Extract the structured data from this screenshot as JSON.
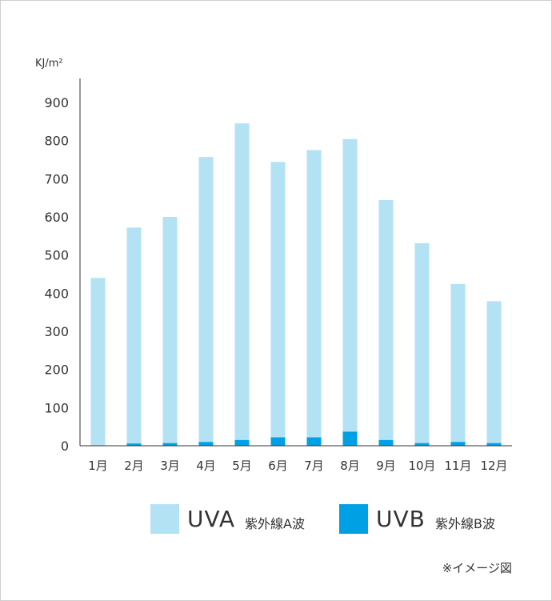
{
  "chart_data": {
    "type": "bar",
    "stacked": true,
    "y_unit": "KJ/m²",
    "ylim": [
      0,
      900
    ],
    "y_ticks": [
      0,
      100,
      200,
      300,
      400,
      500,
      600,
      700,
      800,
      900
    ],
    "categories": [
      "1月",
      "2月",
      "3月",
      "4月",
      "5月",
      "6月",
      "7月",
      "8月",
      "9月",
      "10月",
      "11月",
      "12月"
    ],
    "series": [
      {
        "name": "UVA",
        "color": "#b3e2f5",
        "values": [
          440,
          566,
          593,
          747,
          830,
          722,
          753,
          767,
          629,
          524,
          414,
          372
        ]
      },
      {
        "name": "UVB",
        "color": "#00a1e4",
        "values": [
          0,
          6,
          7,
          10,
          15,
          22,
          22,
          37,
          15,
          7,
          10,
          7
        ]
      }
    ],
    "grid": false,
    "legend_position": "bottom"
  },
  "legend": [
    {
      "code": "UVA",
      "desc": "紫外線A波",
      "color": "#b3e2f5"
    },
    {
      "code": "UVB",
      "desc": "紫外線B波",
      "color": "#00a1e4"
    }
  ],
  "footnote": "※イメージ図"
}
